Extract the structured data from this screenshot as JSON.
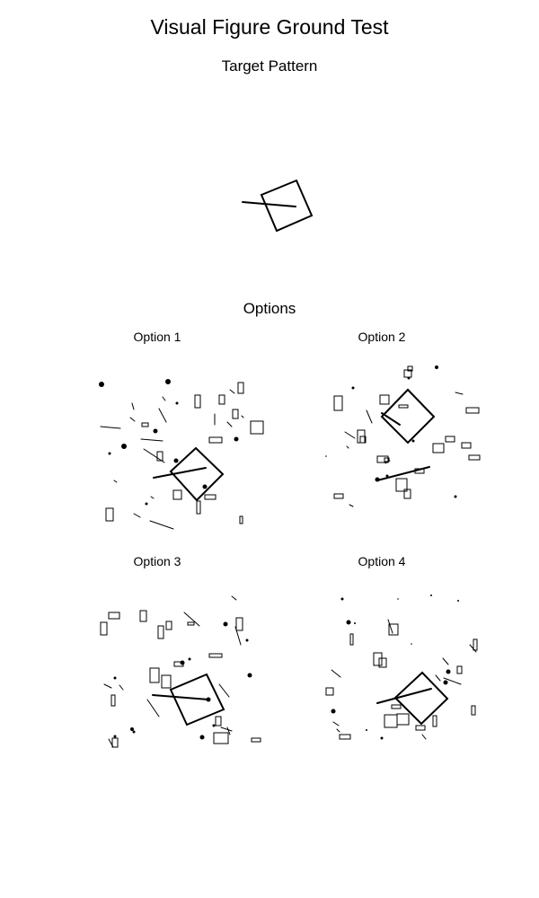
{
  "title": "Visual Figure Ground Test",
  "target_label": "Target Pattern",
  "options_label": "Options",
  "options": [
    {
      "label": "Option 1"
    },
    {
      "label": "Option 2"
    },
    {
      "label": "Option 3"
    },
    {
      "label": "Option 4"
    }
  ],
  "colors": {
    "ink": "#000000",
    "background": "#ffffff"
  }
}
